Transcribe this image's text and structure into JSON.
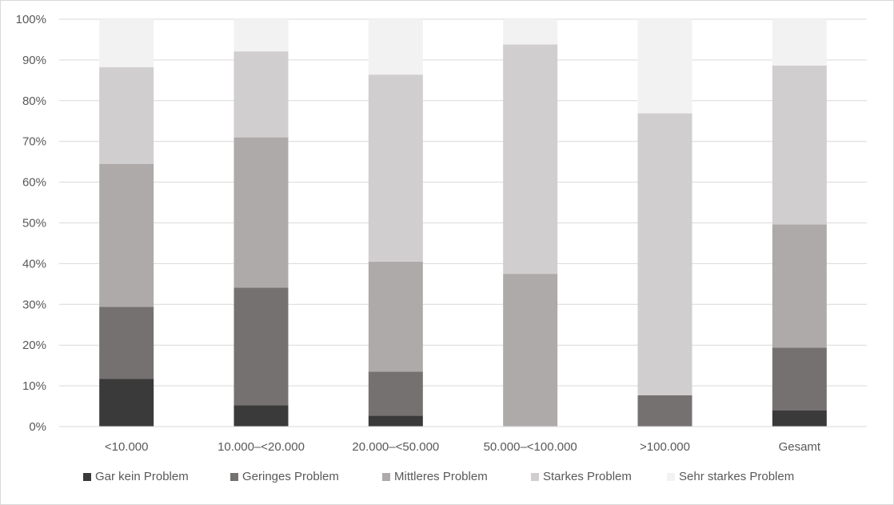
{
  "chart_data": {
    "type": "bar",
    "stacked": true,
    "percent": true,
    "categories": [
      "<10.000",
      "10.000–<20.000",
      "20.000–<50.000",
      "50.000–<100.000",
      ">100.000",
      "Gesamt"
    ],
    "series": [
      {
        "name": "Gar kein Problem",
        "color": "#3a3a3a",
        "values": [
          11.7,
          5.2,
          2.7,
          0,
          0,
          4.0
        ]
      },
      {
        "name": "Geringes Problem",
        "color": "#767171",
        "values": [
          17.7,
          28.9,
          10.8,
          0,
          7.7,
          15.4
        ]
      },
      {
        "name": "Mittleres Problem",
        "color": "#aeaaaa",
        "values": [
          35.1,
          36.9,
          27.0,
          37.5,
          0,
          30.2
        ]
      },
      {
        "name": "Starkes Problem",
        "color": "#d0cece",
        "values": [
          23.7,
          21.1,
          45.9,
          56.3,
          69.2,
          39.0
        ]
      },
      {
        "name": "Sehr starkes Problem",
        "color": "#f2f2f2",
        "values": [
          11.8,
          7.9,
          13.6,
          6.2,
          23.1,
          11.4
        ]
      }
    ],
    "ylim": [
      0,
      100
    ],
    "yticks": [
      "0%",
      "10%",
      "20%",
      "30%",
      "40%",
      "50%",
      "60%",
      "70%",
      "80%",
      "90%",
      "100%"
    ],
    "grid": true,
    "legend_position": "bottom",
    "title": "",
    "xlabel": "",
    "ylabel": ""
  }
}
